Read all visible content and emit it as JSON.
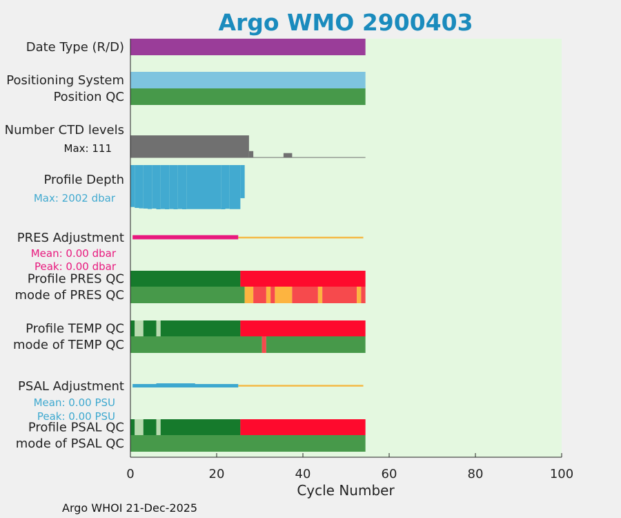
{
  "chart_data": {
    "type": "bar",
    "title": "Argo WMO 2900403",
    "xlabel": "Cycle Number",
    "xlim": [
      0,
      100
    ],
    "xticks": [
      0,
      20,
      40,
      60,
      80,
      100
    ],
    "footer": "Argo WHOI 21-Dec-2025",
    "colors": {
      "title": "#1a8bbd",
      "plot_bg": "#e4f8e0",
      "purple": "#9a3d99",
      "lightblue": "#7ec4df",
      "green": "#47994a",
      "darkgreen": "#167a2c",
      "palegreen": "#b9dbb0",
      "red": "#fe0a2d",
      "lightred": "#f64a4d",
      "orange": "#fdb440",
      "gray": "#707070",
      "depth": "#42aad0",
      "pink": "#e8187d",
      "psal": "#3da8cf",
      "adjline": "#f4b945",
      "text": "#222222"
    },
    "rows": [
      {
        "label": "Date Type (R/D)",
        "segments": [
          [
            0,
            54.5,
            "purple"
          ]
        ]
      },
      {
        "label": "Positioning System",
        "segments": [
          [
            0,
            54.5,
            "lightblue"
          ]
        ]
      },
      {
        "label": "Position QC",
        "segments": [
          [
            0,
            54.5,
            "green"
          ]
        ]
      },
      {
        "label": "Profile PRES QC",
        "segments": [
          [
            0,
            25.5,
            "darkgreen"
          ],
          [
            25.5,
            54.5,
            "red"
          ]
        ]
      },
      {
        "label": "mode of PRES QC",
        "segments": [
          [
            0,
            26.5,
            "green"
          ],
          [
            26.5,
            28.5,
            "orange"
          ],
          [
            28.5,
            31.5,
            "lightred"
          ],
          [
            31.5,
            32.5,
            "orange"
          ],
          [
            32.5,
            33.5,
            "lightred"
          ],
          [
            33.5,
            37.5,
            "orange"
          ],
          [
            37.5,
            43.5,
            "lightred"
          ],
          [
            43.5,
            44.5,
            "orange"
          ],
          [
            44.5,
            52.5,
            "lightred"
          ],
          [
            52.5,
            53.5,
            "orange"
          ],
          [
            53.5,
            54.5,
            "lightred"
          ]
        ]
      },
      {
        "label": "Profile TEMP QC",
        "segments": [
          [
            0,
            1,
            "darkgreen"
          ],
          [
            1,
            3,
            "palegreen"
          ],
          [
            3,
            6,
            "darkgreen"
          ],
          [
            6,
            7,
            "palegreen"
          ],
          [
            7,
            25.5,
            "darkgreen"
          ],
          [
            25.5,
            54.5,
            "red"
          ]
        ]
      },
      {
        "label": "mode of TEMP QC",
        "segments": [
          [
            0,
            30.5,
            "green"
          ],
          [
            30.5,
            31.5,
            "lightred"
          ],
          [
            31.5,
            54.5,
            "green"
          ]
        ]
      },
      {
        "label": "Profile PSAL QC",
        "segments": [
          [
            0,
            1,
            "darkgreen"
          ],
          [
            1,
            3,
            "palegreen"
          ],
          [
            3,
            6,
            "darkgreen"
          ],
          [
            6,
            7,
            "palegreen"
          ],
          [
            7,
            25.5,
            "darkgreen"
          ],
          [
            25.5,
            54.5,
            "red"
          ]
        ]
      },
      {
        "label": "mode of PSAL QC",
        "segments": [
          [
            0,
            54.5,
            "green"
          ]
        ]
      }
    ],
    "ctd_levels": {
      "label": "Number CTD levels",
      "max_label": "Max: 111",
      "max": 111,
      "extent": [
        0,
        54.5
      ],
      "values": [
        [
          0,
          27.5,
          111
        ],
        [
          27.5,
          28.5,
          32
        ],
        [
          35.5,
          37.5,
          22
        ]
      ]
    },
    "profile_depth": {
      "label": "Profile Depth",
      "max_label": "Max: 2002 dbar",
      "max": 2002,
      "values": [
        [
          0,
          1,
          1900
        ],
        [
          1,
          2,
          1940
        ],
        [
          2,
          3,
          1960
        ],
        [
          3,
          4,
          1970
        ],
        [
          4,
          5,
          1990
        ],
        [
          5,
          6,
          1970
        ],
        [
          6,
          7,
          2002
        ],
        [
          7,
          8,
          1990
        ],
        [
          8,
          9,
          2002
        ],
        [
          9,
          10,
          1990
        ],
        [
          10,
          11,
          2002
        ],
        [
          11,
          12,
          1990
        ],
        [
          12,
          13,
          2002
        ],
        [
          13,
          21,
          1995
        ],
        [
          21,
          22,
          2002
        ],
        [
          22,
          23,
          1980
        ],
        [
          23,
          25.5,
          1995
        ],
        [
          25.5,
          26.5,
          1500
        ]
      ]
    },
    "pres_adjustment": {
      "label": "PRES Adjustment",
      "mean_label": "Mean: 0.00 dbar",
      "peak_label": "Peak: 0.00 dbar",
      "thick": [
        0.5,
        25
      ],
      "thin": [
        25,
        54
      ]
    },
    "psal_adjustment": {
      "label": "PSAL Adjustment",
      "mean_label": "Mean: 0.00 PSU",
      "peak_label": "Peak: 0.00 PSU",
      "thick": [
        0.5,
        25
      ],
      "hump": [
        6,
        15
      ],
      "thin": [
        25,
        54
      ]
    }
  }
}
